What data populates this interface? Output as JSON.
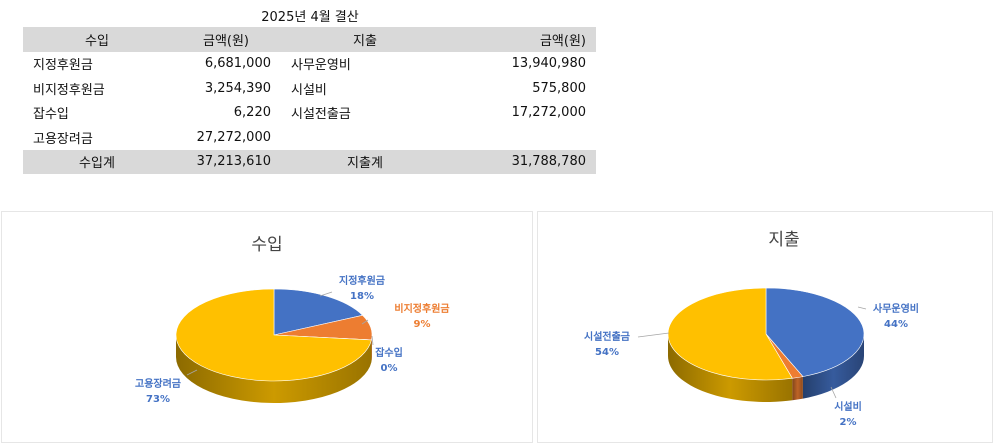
{
  "sheet_title": "2025년 4월 결산",
  "table": {
    "headers": [
      "수입",
      "금액(원)",
      "지출",
      "금액(원)"
    ],
    "rows": [
      [
        "지정후원금",
        "6,681,000",
        "사무운영비",
        "13,940,980"
      ],
      [
        "비지정후원금",
        "3,254,390",
        "시설비",
        "575,800"
      ],
      [
        "잡수입",
        "6,220",
        "시설전출금",
        "17,272,000"
      ],
      [
        "고용장려금",
        "27,272,000",
        "",
        ""
      ]
    ],
    "totals": [
      "수입계",
      "37,213,610",
      "지출계",
      "31,788,780"
    ]
  },
  "chart_data": [
    {
      "type": "pie",
      "title": "수입",
      "categories": [
        "지정후원금",
        "비지정후원금",
        "잡수입",
        "고용장려금"
      ],
      "values": [
        6681000,
        3254390,
        6220,
        27272000
      ],
      "percent_labels": [
        "18%",
        "9%",
        "0%",
        "73%"
      ],
      "colors": [
        "#4472c4",
        "#ed7d31",
        "#a5a5a5",
        "#ffc000"
      ],
      "label_colors": [
        "#4472c4",
        "#ed7d31",
        "#4472c4",
        "#4472c4"
      ],
      "style": "3d"
    },
    {
      "type": "pie",
      "title": "지출",
      "categories": [
        "사무운영비",
        "시설비",
        "시설전출금"
      ],
      "values": [
        13940980,
        575800,
        17272000
      ],
      "percent_labels": [
        "44%",
        "2%",
        "54%"
      ],
      "colors": [
        "#4472c4",
        "#ed7d31",
        "#ffc000"
      ],
      "label_colors": [
        "#4472c4",
        "#4472c4",
        "#4472c4"
      ],
      "style": "3d"
    }
  ]
}
